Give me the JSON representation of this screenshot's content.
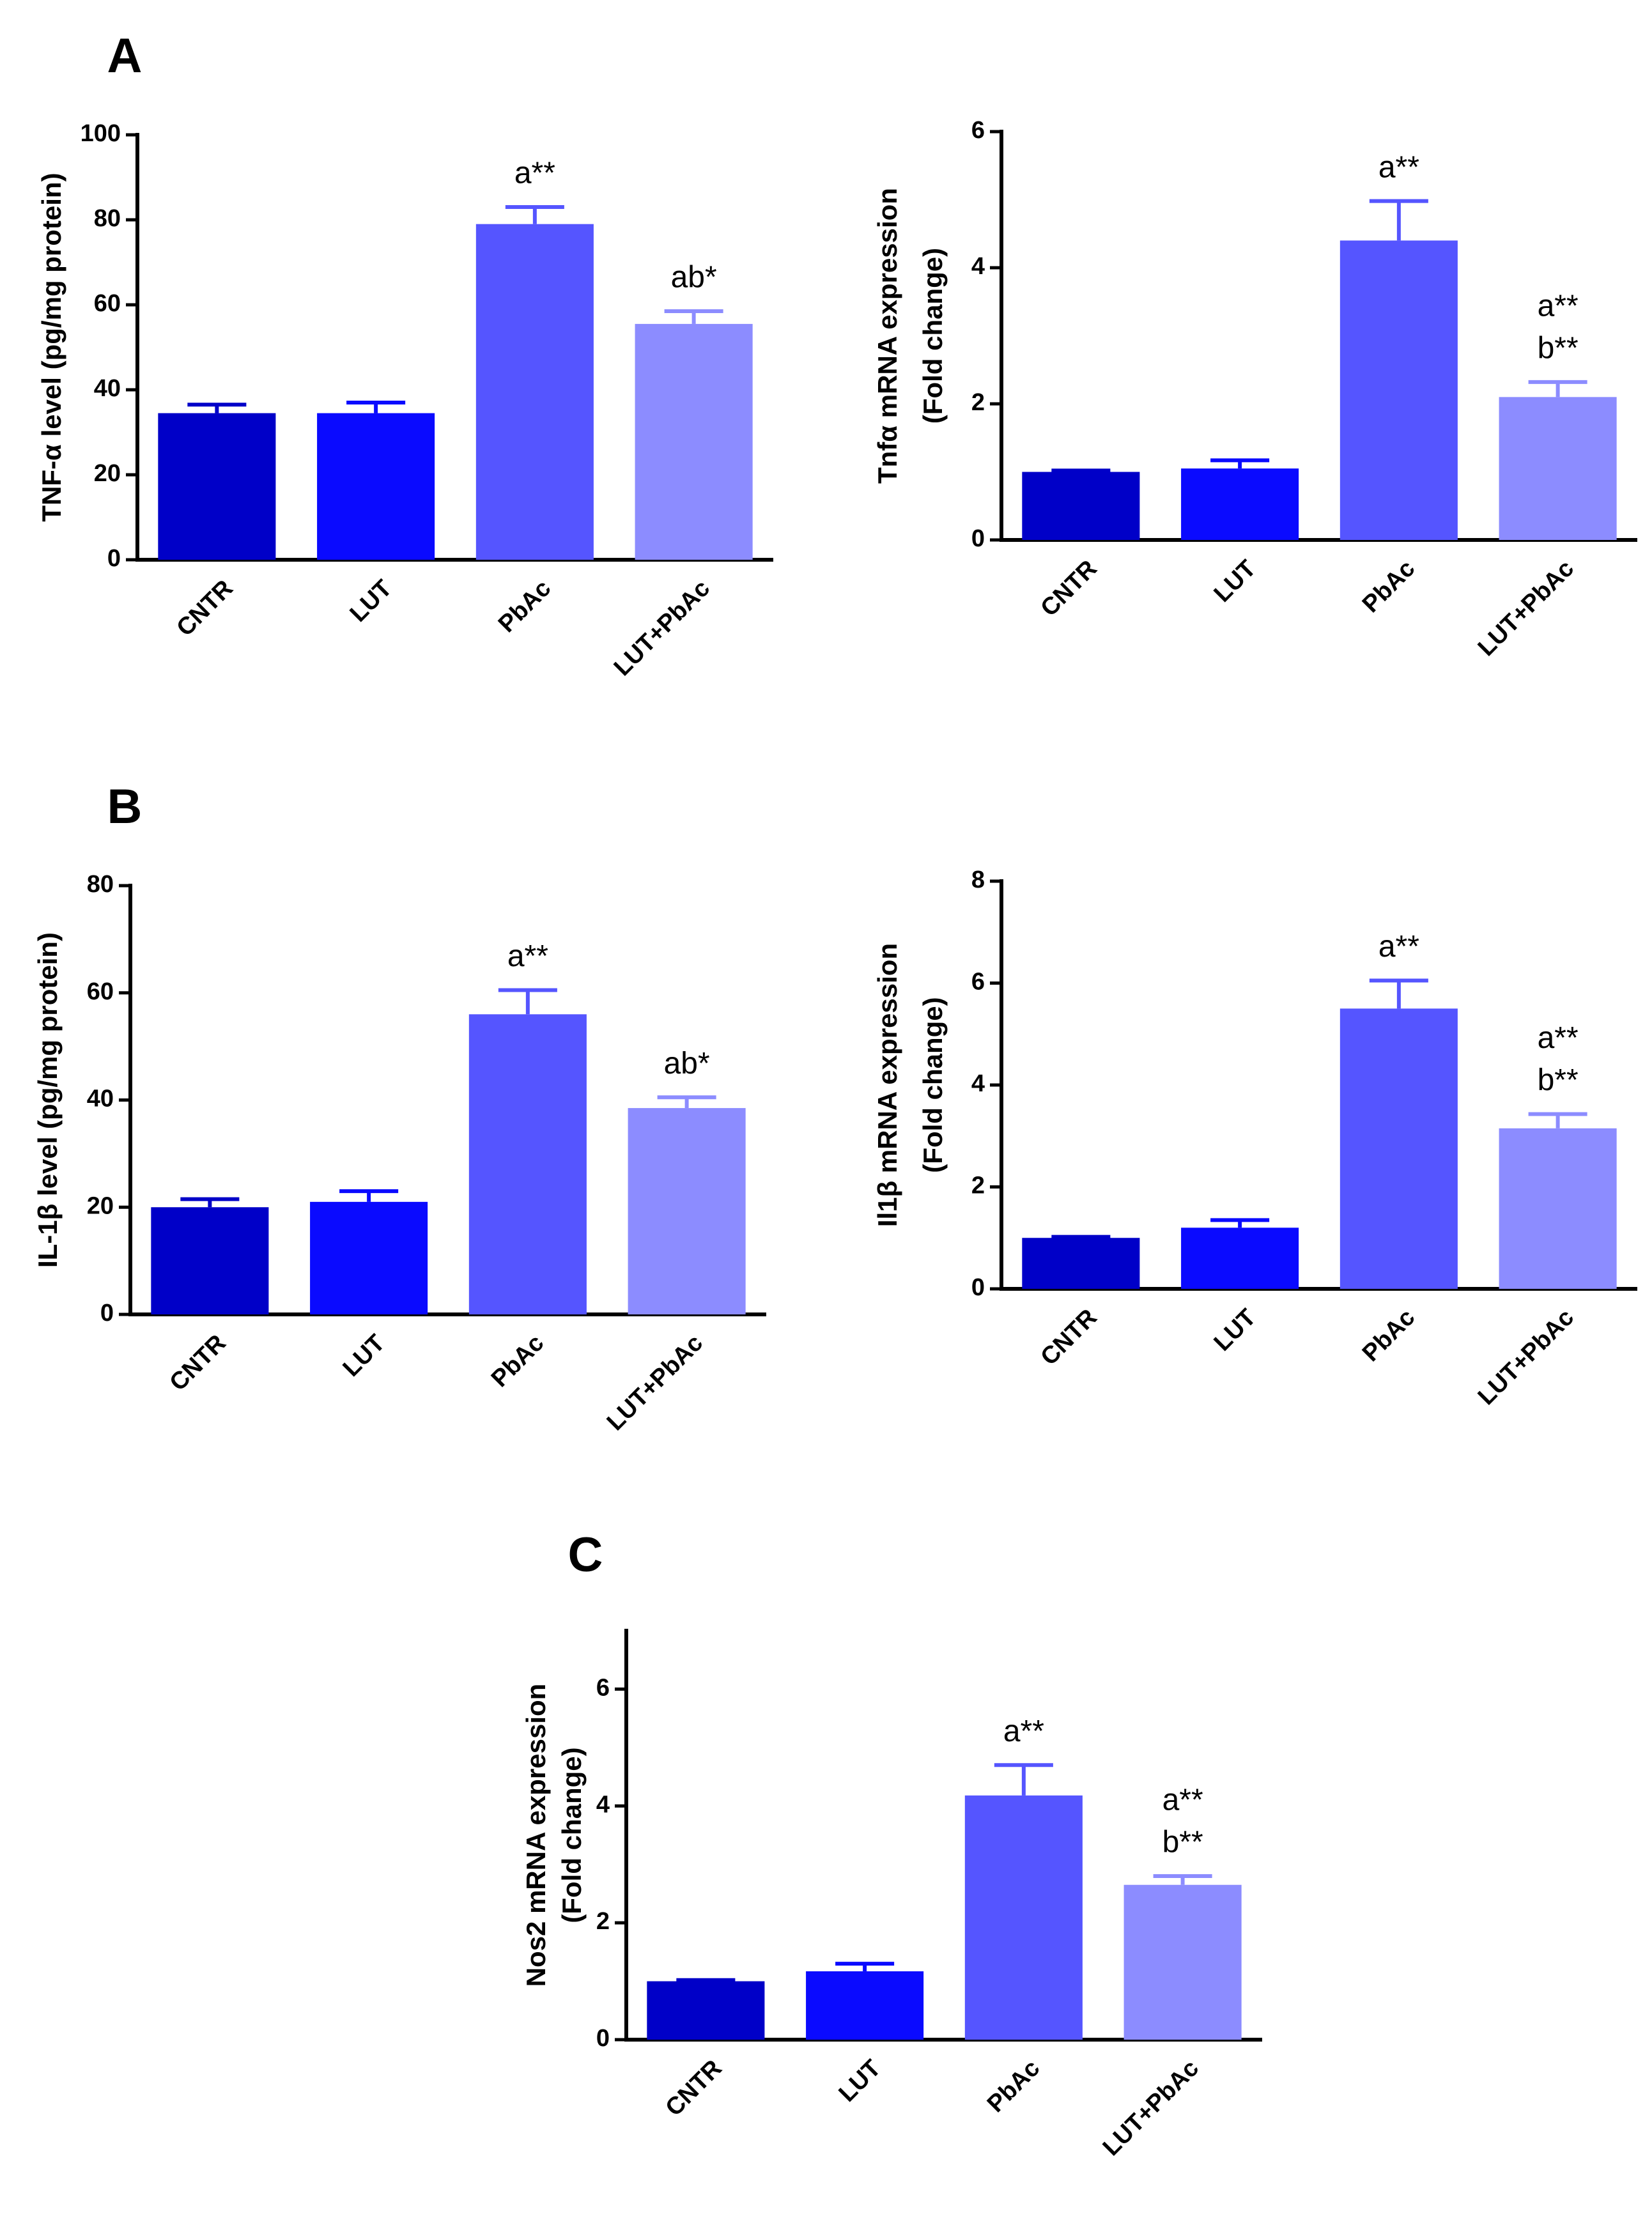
{
  "chart_data": [
    {
      "type": "bar",
      "panel": "A",
      "ylabel": [
        "TNF-α level (pg/mg protein)"
      ],
      "categories": [
        "CNTR",
        "LUT",
        "PbAc",
        "LUT+PbAc"
      ],
      "values": [
        34.5,
        34.5,
        79,
        55.5
      ],
      "errors": [
        2,
        2.5,
        4,
        3
      ],
      "annotations": [
        null,
        null,
        [
          "a**"
        ],
        [
          "ab*"
        ]
      ],
      "colors": [
        "#0000c8",
        "#0a0aff",
        "#5555ff",
        "#8c8cff"
      ],
      "ylim": [
        0,
        100
      ],
      "yticks": [
        0,
        20,
        40,
        60,
        80,
        100
      ]
    },
    {
      "type": "bar",
      "ylabel": [
        "Tnfα mRNA expression",
        "(Fold change)"
      ],
      "categories": [
        "CNTR",
        "LUT",
        "PbAc",
        "LUT+PbAc"
      ],
      "values": [
        1,
        1.05,
        4.4,
        2.1
      ],
      "errors": [
        0.02,
        0.12,
        0.58,
        0.22
      ],
      "annotations": [
        null,
        null,
        [
          "a**"
        ],
        [
          "a**",
          "b**"
        ]
      ],
      "colors": [
        "#0000c8",
        "#0a0aff",
        "#5555ff",
        "#8c8cff"
      ],
      "ylim": [
        0,
        6
      ],
      "yticks": [
        0,
        2,
        4,
        6
      ]
    },
    {
      "type": "bar",
      "panel": "B",
      "ylabel": [
        "IL-1β level (pg/mg protein)"
      ],
      "categories": [
        "CNTR",
        "LUT",
        "PbAc",
        "LUT+PbAc"
      ],
      "values": [
        20,
        21,
        56,
        38.5
      ],
      "errors": [
        1.5,
        2,
        4.5,
        2
      ],
      "annotations": [
        null,
        null,
        [
          "a**"
        ],
        [
          "ab*"
        ]
      ],
      "colors": [
        "#0000c8",
        "#0a0aff",
        "#5555ff",
        "#8c8cff"
      ],
      "ylim": [
        0,
        80
      ],
      "yticks": [
        0,
        20,
        40,
        60,
        80
      ]
    },
    {
      "type": "bar",
      "ylabel": [
        "Il1β mRNA expression",
        "(Fold change)"
      ],
      "categories": [
        "CNTR",
        "LUT",
        "PbAc",
        "LUT+PbAc"
      ],
      "values": [
        1,
        1.2,
        5.5,
        3.15
      ],
      "errors": [
        0.02,
        0.15,
        0.55,
        0.28
      ],
      "annotations": [
        null,
        null,
        [
          "a**"
        ],
        [
          "a**",
          "b**"
        ]
      ],
      "colors": [
        "#0000c8",
        "#0a0aff",
        "#5555ff",
        "#8c8cff"
      ],
      "ylim": [
        0,
        8
      ],
      "yticks": [
        0,
        2,
        4,
        6,
        8
      ]
    },
    {
      "type": "bar",
      "panel": "C",
      "ylabel": [
        "Nos2 mRNA expression",
        "(Fold change)"
      ],
      "categories": [
        "CNTR",
        "LUT",
        "PbAc",
        "LUT+PbAc"
      ],
      "values": [
        1,
        1.17,
        4.18,
        2.65
      ],
      "errors": [
        0.02,
        0.13,
        0.52,
        0.15
      ],
      "annotations": [
        null,
        null,
        [
          "a**"
        ],
        [
          "a**",
          "b**"
        ]
      ],
      "colors": [
        "#0000c8",
        "#0a0aff",
        "#5555ff",
        "#8c8cff"
      ],
      "ylim": [
        0,
        7
      ],
      "yticks": [
        0,
        2,
        4,
        6
      ]
    }
  ]
}
